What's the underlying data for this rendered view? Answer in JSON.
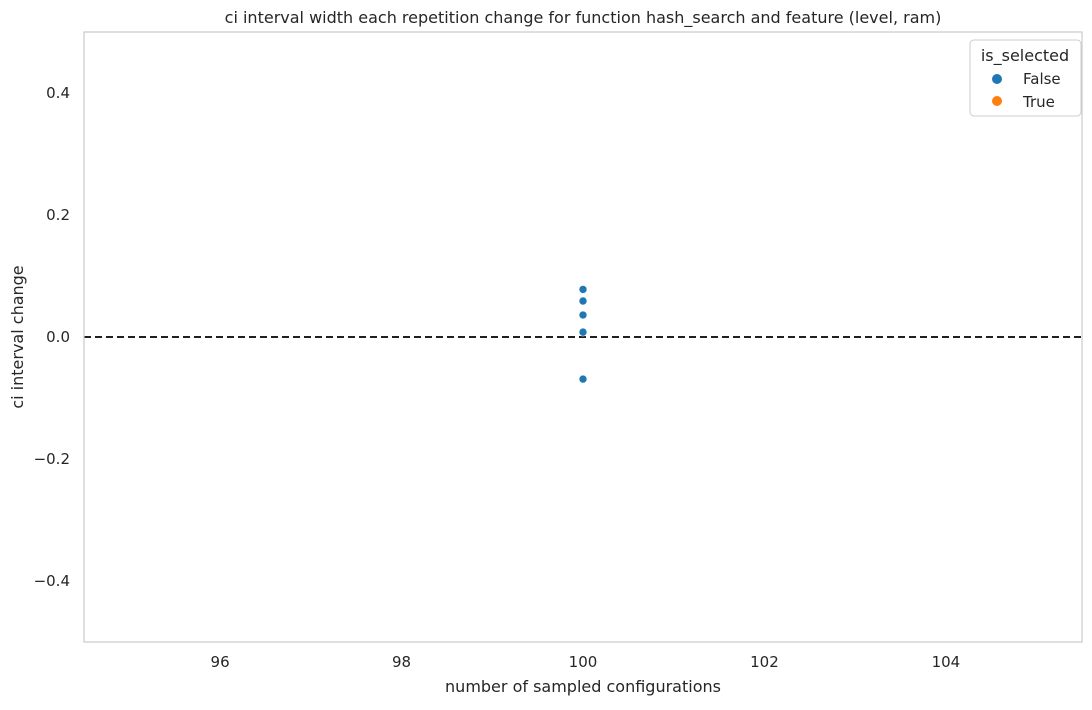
{
  "chart_data": {
    "type": "scatter",
    "title": "ci interval width each repetition change for function hash_search and feature (level, ram)",
    "xlabel": "number of sampled configurations",
    "ylabel": "ci interval change",
    "xlim": [
      94.5,
      105.5
    ],
    "ylim": [
      -0.5,
      0.5
    ],
    "xticks": [
      96,
      98,
      100,
      102,
      104
    ],
    "xtick_labels": [
      "96",
      "98",
      "100",
      "102",
      "104"
    ],
    "yticks": [
      -0.4,
      -0.2,
      0.0,
      0.2,
      0.4
    ],
    "ytick_labels": [
      "−0.4",
      "−0.2",
      "0.0",
      "0.2",
      "0.4"
    ],
    "grid": false,
    "reference_line": {
      "y": 0.0,
      "style": "dashed",
      "color": "#000000"
    },
    "legend": {
      "title": "is_selected",
      "placement": "top-right",
      "entries": [
        {
          "label": "False",
          "color": "#1f77b4"
        },
        {
          "label": "True",
          "color": "#ff7f0e"
        }
      ]
    },
    "series": [
      {
        "name": "False",
        "color": "#1f77b4",
        "points": [
          {
            "x": 100,
            "y": 0.078
          },
          {
            "x": 100,
            "y": 0.059
          },
          {
            "x": 100,
            "y": 0.036
          },
          {
            "x": 100,
            "y": 0.008
          },
          {
            "x": 100,
            "y": -0.069
          }
        ]
      },
      {
        "name": "True",
        "color": "#ff7f0e",
        "points": []
      }
    ]
  }
}
